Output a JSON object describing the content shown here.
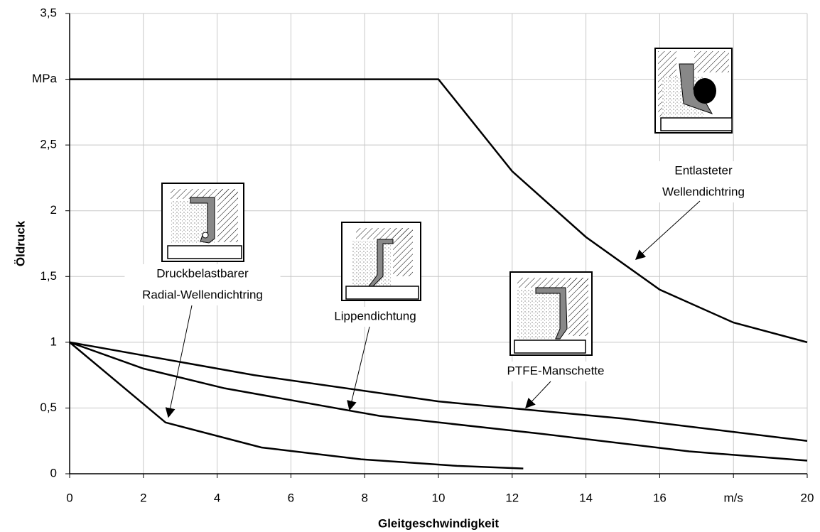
{
  "chart_data": {
    "type": "line",
    "x_label": "Gleitgeschwindigkeit",
    "y_label": "Öldruck",
    "xlim": [
      0,
      20
    ],
    "ylim": [
      0,
      3.5
    ],
    "xticks": [
      0,
      2,
      4,
      6,
      8,
      10,
      12,
      14,
      16,
      {
        "value": 18,
        "label": "m/s"
      },
      20
    ],
    "yticks": [
      0,
      {
        "value": 0.5,
        "label": "0,5"
      },
      1,
      {
        "value": 1.5,
        "label": "1,5"
      },
      2,
      {
        "value": 2.5,
        "label": "2,5"
      },
      {
        "value": 3,
        "label": "MPa"
      },
      {
        "value": 3.5,
        "label": "3,5"
      }
    ],
    "grid": true,
    "series": [
      {
        "color": "#000000",
        "x": [
          0,
          10,
          12,
          14,
          16,
          18,
          20
        ],
        "values": [
          3,
          3,
          2.3,
          1.8,
          1.4,
          1.15,
          1.0
        ]
      },
      {
        "color": "#000000",
        "x": [
          0,
          5,
          10,
          15,
          20
        ],
        "values": [
          1,
          0.75,
          0.55,
          0.42,
          0.25
        ]
      },
      {
        "color": "#000000",
        "x": [
          0,
          2,
          4.2,
          8.4,
          12.6,
          16.8,
          20
        ],
        "values": [
          1,
          0.8,
          0.65,
          0.44,
          0.31,
          0.17,
          0.1
        ]
      },
      {
        "color": "#000000",
        "x": [
          0,
          2.6,
          5.2,
          7.9,
          10.5,
          12.3
        ],
        "values": [
          1,
          0.39,
          0.2,
          0.11,
          0.06,
          0.04
        ]
      }
    ],
    "annotations": [
      {
        "lines": [
          "Entlasteter",
          "Wellendichtring"
        ]
      },
      {
        "lines": [
          "Druckbelastbarer",
          "Radial-Wellendichtring"
        ]
      },
      {
        "lines": [
          "Lippendichtung"
        ]
      },
      {
        "lines": [
          "PTFE-Manschette"
        ]
      }
    ]
  }
}
